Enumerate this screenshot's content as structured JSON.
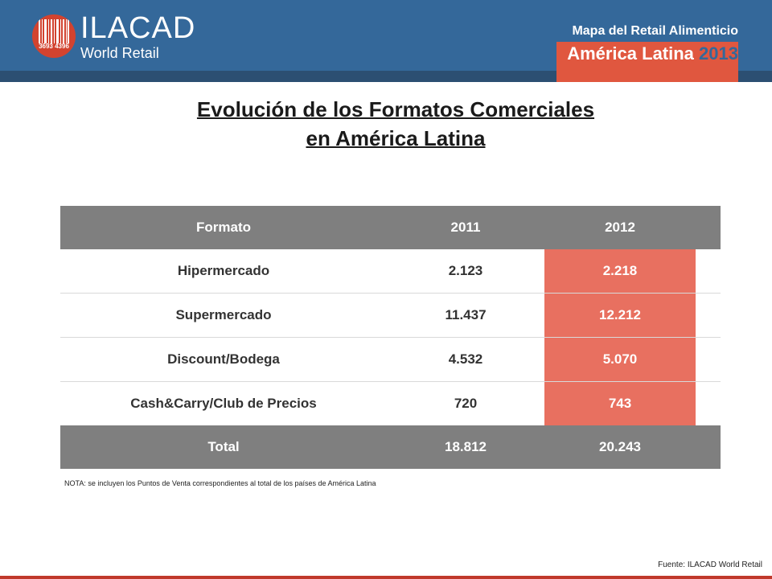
{
  "header": {
    "logo_name": "ILACAD",
    "logo_tagline": "World Retail",
    "logo_code": "3693 4396",
    "subtitle": "Mapa del Retail Alimenticio",
    "title_main": "América Latina",
    "title_year": "2013",
    "colors": {
      "header_bg": "#34689a",
      "accent": "#e0573f"
    }
  },
  "page": {
    "title_line1": "Evolución de los Formatos Comerciales",
    "title_line2": "en América Latina"
  },
  "table": {
    "headers": [
      "Formato",
      "2011",
      "2012"
    ],
    "rows": [
      {
        "formato": "Hipermercado",
        "y2011": "2.123",
        "y2012": "2.218"
      },
      {
        "formato": "Supermercado",
        "y2011": "11.437",
        "y2012": "12.212"
      },
      {
        "formato": "Discount/Bodega",
        "y2011": "4.532",
        "y2012": "5.070"
      },
      {
        "formato": "Cash&Carry/Club de Precios",
        "y2011": "720",
        "y2012": "743"
      }
    ],
    "total": {
      "label": "Total",
      "y2011": "18.812",
      "y2012": "20.243"
    },
    "colors": {
      "header_bg": "#7f7f7f",
      "highlight": "#e87060"
    }
  },
  "note": "NOTA: se incluyen los  Puntos de Venta correspondientes al total de los países de América Latina",
  "source": "Fuente: ILACAD World Retail"
}
